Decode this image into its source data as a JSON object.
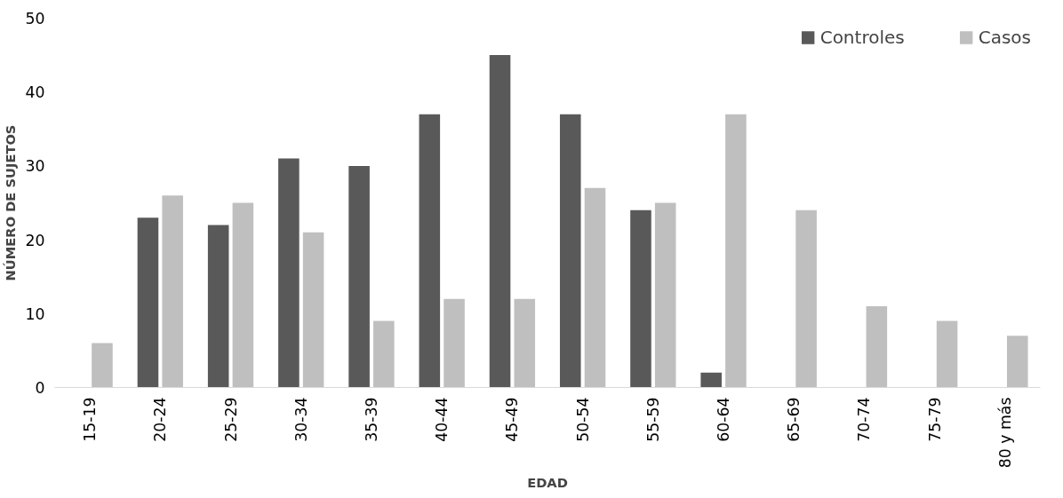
{
  "chart_data": {
    "type": "bar",
    "xlabel": "EDAD",
    "ylabel": "NÚMERO DE SUJETOS",
    "categories": [
      "15-19",
      "20-24",
      "25-29",
      "30-34",
      "35-39",
      "40-44",
      "45-49",
      "50-54",
      "55-59",
      "60-64",
      "65-69",
      "70-74",
      "75-79",
      "80 y más"
    ],
    "series": [
      {
        "name": "Controles",
        "color": "#595959",
        "values": [
          null,
          23,
          22,
          31,
          30,
          37,
          45,
          37,
          24,
          2,
          null,
          null,
          null,
          null
        ]
      },
      {
        "name": "Casos",
        "color": "#bfbfbf",
        "values": [
          6,
          26,
          25,
          21,
          9,
          12,
          12,
          27,
          25,
          37,
          24,
          11,
          9,
          7
        ]
      }
    ],
    "ylim": [
      0,
      50
    ],
    "yticks": [
      0,
      10,
      20,
      30,
      40,
      50
    ],
    "grid": false,
    "legend": "top right"
  }
}
